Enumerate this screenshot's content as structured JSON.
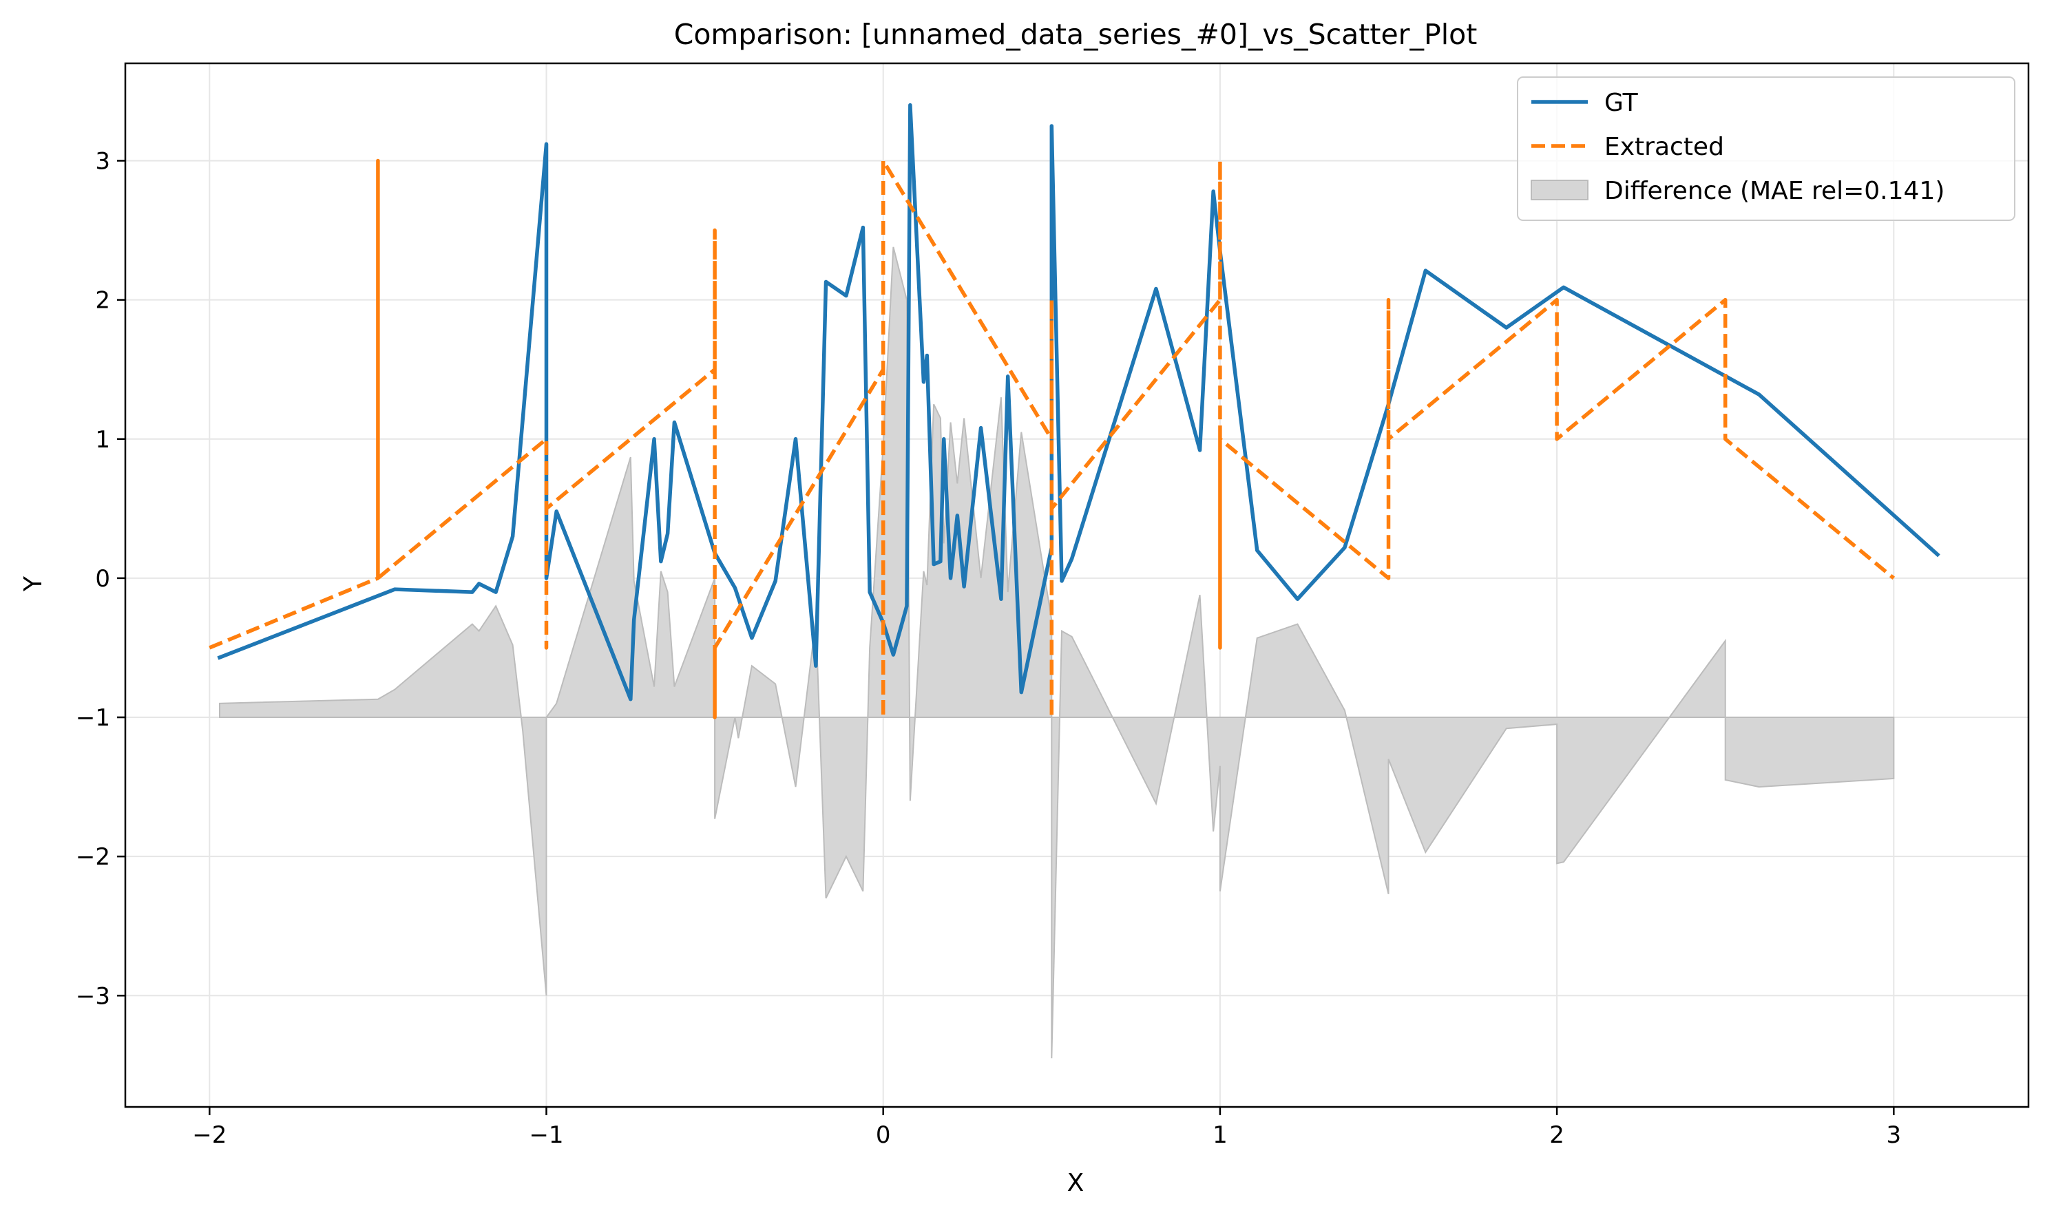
{
  "chart_data": {
    "type": "line",
    "title": "Comparison: [unnamed_data_series_#0]_vs_Scatter_Plot",
    "xlabel": "X",
    "ylabel": "Y",
    "xlim": [
      -2.25,
      3.4
    ],
    "ylim": [
      -3.8,
      3.7
    ],
    "xticks": [
      -2,
      -1,
      0,
      1,
      2,
      3
    ],
    "yticks": [
      -3,
      -2,
      -1,
      0,
      1,
      2,
      3
    ],
    "xtick_labels": [
      "−2",
      "−1",
      "0",
      "1",
      "2",
      "3"
    ],
    "ytick_labels": [
      "−3",
      "−2",
      "−1",
      "0",
      "1",
      "2",
      "3"
    ],
    "grid": true,
    "legend_position": "top-right",
    "colors": {
      "gt": "#1f77b4",
      "extracted": "#ff7f0e",
      "difference": "#d6d6d6",
      "difference_edge": "#bcbcbc"
    },
    "series": [
      {
        "name": "GT",
        "style": "solid",
        "points": [
          [
            -1.97,
            -0.57
          ],
          [
            -1.45,
            -0.08
          ],
          [
            -1.22,
            -0.1
          ],
          [
            -1.2,
            -0.04
          ],
          [
            -1.15,
            -0.1
          ],
          [
            -1.1,
            0.3
          ],
          [
            -1.0,
            3.12
          ],
          [
            -1.0,
            0.0
          ],
          [
            -0.97,
            0.48
          ],
          [
            -0.75,
            -0.87
          ],
          [
            -0.74,
            -0.3
          ],
          [
            -0.68,
            1.0
          ],
          [
            -0.66,
            0.12
          ],
          [
            -0.64,
            0.32
          ],
          [
            -0.62,
            1.12
          ],
          [
            -0.5,
            0.18
          ],
          [
            -0.44,
            -0.07
          ],
          [
            -0.39,
            -0.43
          ],
          [
            -0.32,
            -0.02
          ],
          [
            -0.26,
            1.0
          ],
          [
            -0.2,
            -0.63
          ],
          [
            -0.17,
            2.13
          ],
          [
            -0.11,
            2.03
          ],
          [
            -0.06,
            2.52
          ],
          [
            -0.04,
            -0.1
          ],
          [
            0.0,
            -0.32
          ],
          [
            0.03,
            -0.55
          ],
          [
            0.07,
            -0.2
          ],
          [
            0.08,
            3.4
          ],
          [
            0.12,
            1.41
          ],
          [
            0.13,
            1.6
          ],
          [
            0.15,
            0.1
          ],
          [
            0.17,
            0.12
          ],
          [
            0.18,
            1.0
          ],
          [
            0.2,
            0.0
          ],
          [
            0.22,
            0.45
          ],
          [
            0.24,
            -0.06
          ],
          [
            0.29,
            1.08
          ],
          [
            0.35,
            -0.15
          ],
          [
            0.37,
            1.45
          ],
          [
            0.41,
            -0.82
          ],
          [
            0.5,
            0.22
          ],
          [
            0.5,
            3.25
          ],
          [
            0.53,
            -0.02
          ],
          [
            0.56,
            0.14
          ],
          [
            0.81,
            2.08
          ],
          [
            0.94,
            0.92
          ],
          [
            0.98,
            2.78
          ],
          [
            1.0,
            2.35
          ],
          [
            1.11,
            0.2
          ],
          [
            1.23,
            -0.15
          ],
          [
            1.37,
            0.22
          ],
          [
            1.5,
            1.25
          ],
          [
            1.61,
            2.21
          ],
          [
            1.85,
            1.8
          ],
          [
            2.02,
            2.09
          ],
          [
            2.6,
            1.32
          ],
          [
            3.13,
            0.17
          ]
        ]
      },
      {
        "name": "Extracted",
        "style": "dashed",
        "points": [
          [
            -2.0,
            -0.5
          ],
          [
            -1.5,
            0.0
          ],
          [
            -1.5,
            3.0
          ],
          [
            -1.5,
            0.0
          ],
          [
            -1.0,
            1.0
          ],
          [
            -1.0,
            -0.5
          ],
          [
            -1.0,
            0.5
          ],
          [
            -0.5,
            1.5
          ],
          [
            -0.5,
            2.5
          ],
          [
            -0.5,
            -1.0
          ],
          [
            -0.5,
            -0.5
          ],
          [
            0.0,
            1.5
          ],
          [
            0.0,
            -1.0
          ],
          [
            0.0,
            3.0
          ],
          [
            0.5,
            1.0
          ],
          [
            0.5,
            2.0
          ],
          [
            0.5,
            -1.0
          ],
          [
            0.5,
            0.5
          ],
          [
            1.0,
            2.0
          ],
          [
            1.0,
            3.0
          ],
          [
            1.0,
            -0.5
          ],
          [
            1.0,
            1.0
          ],
          [
            1.5,
            0.0
          ],
          [
            1.5,
            2.0
          ],
          [
            1.5,
            1.0
          ],
          [
            2.0,
            2.0
          ],
          [
            2.0,
            1.0
          ],
          [
            2.5,
            2.0
          ],
          [
            2.5,
            1.0
          ],
          [
            3.0,
            0.0
          ]
        ]
      },
      {
        "name": "Difference (MAE rel=0.141)",
        "style": "fill",
        "baseline": -1,
        "points": [
          [
            -1.97,
            -0.9
          ],
          [
            -1.5,
            -0.87
          ],
          [
            -1.45,
            -0.8
          ],
          [
            -1.22,
            -0.33
          ],
          [
            -1.2,
            -0.38
          ],
          [
            -1.15,
            -0.2
          ],
          [
            -1.1,
            -0.48
          ],
          [
            -1.07,
            -1.1
          ],
          [
            -1.0,
            -3.0
          ],
          [
            -1.0,
            -1.0
          ],
          [
            -0.97,
            -0.9
          ],
          [
            -0.75,
            0.87
          ],
          [
            -0.74,
            -0.02
          ],
          [
            -0.68,
            -0.78
          ],
          [
            -0.66,
            0.05
          ],
          [
            -0.64,
            -0.1
          ],
          [
            -0.62,
            -0.78
          ],
          [
            -0.5,
            0.0
          ],
          [
            -0.5,
            -1.73
          ],
          [
            -0.44,
            -1.0
          ],
          [
            -0.43,
            -1.15
          ],
          [
            -0.39,
            -0.63
          ],
          [
            -0.32,
            -0.76
          ],
          [
            -0.26,
            -1.5
          ],
          [
            -0.2,
            -0.3
          ],
          [
            -0.17,
            -2.3
          ],
          [
            -0.11,
            -2.0
          ],
          [
            -0.06,
            -2.25
          ],
          [
            -0.04,
            -0.5
          ],
          [
            0.0,
            0.95
          ],
          [
            0.03,
            2.38
          ],
          [
            0.07,
            2.0
          ],
          [
            0.08,
            -1.6
          ],
          [
            0.12,
            0.05
          ],
          [
            0.13,
            -0.05
          ],
          [
            0.15,
            1.25
          ],
          [
            0.17,
            1.15
          ],
          [
            0.18,
            0.25
          ],
          [
            0.2,
            1.12
          ],
          [
            0.22,
            0.68
          ],
          [
            0.24,
            1.15
          ],
          [
            0.29,
            0.0
          ],
          [
            0.35,
            1.3
          ],
          [
            0.37,
            -0.1
          ],
          [
            0.41,
            1.05
          ],
          [
            0.5,
            -0.3
          ],
          [
            0.5,
            -3.45
          ],
          [
            0.53,
            -0.38
          ],
          [
            0.56,
            -0.42
          ],
          [
            0.81,
            -1.62
          ],
          [
            0.94,
            -0.12
          ],
          [
            0.98,
            -1.82
          ],
          [
            1.0,
            -1.35
          ],
          [
            1.0,
            -2.25
          ],
          [
            1.11,
            -0.43
          ],
          [
            1.23,
            -0.33
          ],
          [
            1.37,
            -0.95
          ],
          [
            1.5,
            -2.27
          ],
          [
            1.5,
            -1.3
          ],
          [
            1.61,
            -1.97
          ],
          [
            1.85,
            -1.08
          ],
          [
            2.0,
            -1.05
          ],
          [
            2.0,
            -2.05
          ],
          [
            2.02,
            -2.04
          ],
          [
            2.5,
            -0.45
          ],
          [
            2.5,
            -1.45
          ],
          [
            2.6,
            -1.5
          ],
          [
            3.0,
            -1.44
          ]
        ]
      }
    ]
  }
}
